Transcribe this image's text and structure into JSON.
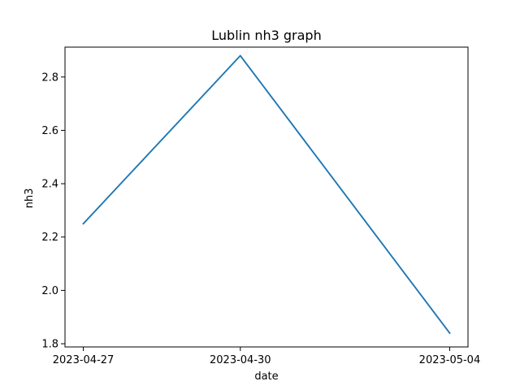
{
  "chart_data": {
    "type": "line",
    "title": "Lublin nh3 graph",
    "xlabel": "date",
    "ylabel": "nh3",
    "x": [
      "2023-04-27",
      "2023-04-30",
      "2023-05-04"
    ],
    "x_tick_labels": [
      "2023-04-27",
      "2023-04-30",
      "2023-05-04"
    ],
    "y_ticks": [
      1.8,
      2.0,
      2.2,
      2.4,
      2.6,
      2.8
    ],
    "y_tick_labels": [
      "1.8",
      "2.0",
      "2.2",
      "2.4",
      "2.6",
      "2.8"
    ],
    "ylim": [
      1.788,
      2.912
    ],
    "grid": false,
    "series": [
      {
        "values": [
          2.25,
          2.88,
          1.84
        ],
        "color": "#1f77b4"
      }
    ]
  }
}
